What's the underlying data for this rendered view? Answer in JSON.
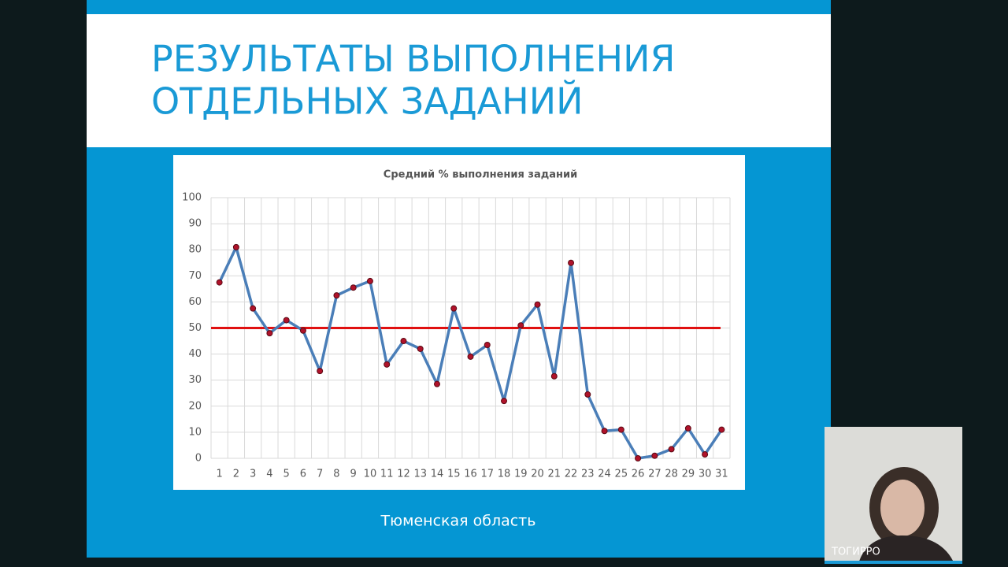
{
  "slide": {
    "title_line1": "РЕЗУЛЬТАТЫ ВЫПОЛНЕНИЯ",
    "title_line2": "ОТДЕЛЬНЫХ ЗАДАНИЙ",
    "caption": "Тюменская область"
  },
  "webcam": {
    "label": "ТОГИРРО"
  },
  "chart_data": {
    "type": "line",
    "title": "Средний % выполнения заданий",
    "categories": [
      "1",
      "2",
      "3",
      "4",
      "5",
      "6",
      "7",
      "8",
      "9",
      "10",
      "11",
      "12",
      "13",
      "14",
      "15",
      "16",
      "17",
      "18",
      "19",
      "20",
      "21",
      "22",
      "23",
      "24",
      "25",
      "26",
      "27",
      "28",
      "29",
      "30",
      "31"
    ],
    "series": [
      {
        "color": "#4a7eb8",
        "marker_color": "#b0122a",
        "values": [
          67.5,
          81,
          57.5,
          48,
          53,
          49,
          33.5,
          62.5,
          65.5,
          68,
          36,
          45,
          42,
          28.5,
          57.5,
          39,
          43.5,
          22,
          51,
          59,
          31.5,
          75,
          24.5,
          10.5,
          11,
          0,
          1,
          3.5,
          11.5,
          1.5,
          11
        ]
      }
    ],
    "reference_line": {
      "value": 50,
      "color": "#e01010"
    },
    "ylim": [
      0,
      100
    ],
    "yticks": [
      0,
      10,
      20,
      30,
      40,
      50,
      60,
      70,
      80,
      90,
      100
    ],
    "grid": true
  }
}
